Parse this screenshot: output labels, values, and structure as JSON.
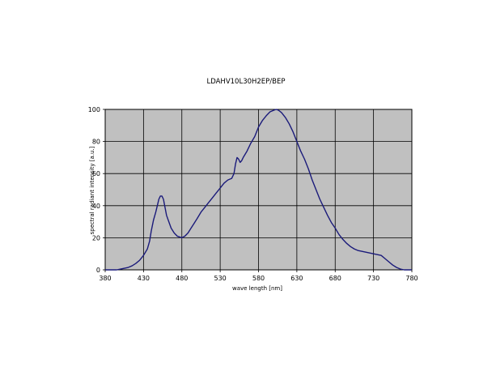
{
  "chart_data": {
    "type": "line",
    "title": "LDAHV10L30H2EP/BEP",
    "xlabel": "wave length [nm]",
    "ylabel": "spectral radiant intensity [a.u.]",
    "xlim": [
      380,
      780
    ],
    "ylim": [
      0,
      100
    ],
    "xticks": [
      380,
      430,
      480,
      530,
      580,
      630,
      680,
      730,
      780
    ],
    "yticks": [
      0,
      20,
      40,
      60,
      80,
      100
    ],
    "grid": true,
    "plot_background": "#c0c0c0",
    "series": [
      {
        "color": "#1a1a7a",
        "x": [
          380,
          395,
          400,
          405,
          410,
          415,
          420,
          425,
          430,
          435,
          438,
          440,
          443,
          446,
          448,
          450,
          452,
          454,
          456,
          458,
          460,
          463,
          466,
          470,
          474,
          477,
          480,
          484,
          488,
          492,
          496,
          500,
          505,
          510,
          515,
          520,
          525,
          530,
          535,
          540,
          545,
          548,
          550,
          552,
          554,
          556,
          558,
          560,
          565,
          570,
          575,
          580,
          585,
          590,
          595,
          600,
          603,
          606,
          610,
          615,
          620,
          625,
          630,
          635,
          640,
          645,
          650,
          655,
          660,
          665,
          670,
          675,
          680,
          685,
          690,
          695,
          700,
          705,
          710,
          715,
          720,
          725,
          730,
          735,
          740,
          745,
          750,
          755,
          760,
          765,
          770,
          775,
          780
        ],
        "y": [
          0,
          0,
          0.5,
          1,
          1.5,
          2.5,
          4,
          6,
          9,
          13,
          18,
          24,
          31,
          36,
          40,
          44,
          46,
          46,
          44,
          39,
          34,
          30,
          26,
          23,
          21,
          20.5,
          20,
          21,
          23,
          26,
          29,
          32,
          36,
          39,
          42,
          45,
          48,
          51,
          54,
          56,
          57,
          60,
          66,
          70,
          69,
          67,
          68,
          70,
          74,
          79,
          83,
          89,
          93,
          96,
          98.5,
          99.5,
          100,
          99.5,
          98,
          95,
          91,
          86,
          80,
          74,
          69,
          63,
          56,
          50,
          44,
          39,
          34,
          29.5,
          26,
          22,
          19,
          16.5,
          14.5,
          13,
          12,
          11.5,
          11,
          10.5,
          10,
          9.5,
          9,
          7,
          5,
          3,
          1.5,
          0.5,
          0,
          0,
          0
        ]
      }
    ]
  }
}
